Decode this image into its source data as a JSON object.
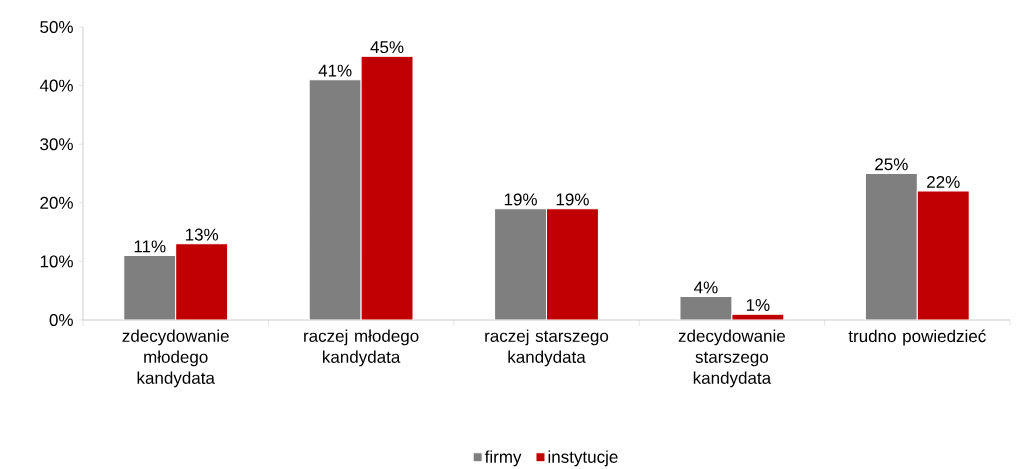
{
  "chart_data": {
    "type": "bar",
    "categories": [
      "zdecydowanie młodego kandydata",
      "raczej młodego kandydata",
      "raczej starszego kandydata",
      "zdecydowanie starszego kandydata",
      "trudno powiedzieć"
    ],
    "series": [
      {
        "name": "firmy",
        "color": "#7f7f7f",
        "values": [
          11,
          41,
          19,
          4,
          25
        ],
        "value_labels": [
          "11%",
          "41%",
          "19%",
          "4%",
          "25%"
        ]
      },
      {
        "name": "instytucje",
        "color": "#c00000",
        "values": [
          13,
          45,
          19,
          1,
          22
        ],
        "value_labels": [
          "13%",
          "45%",
          "19%",
          "1%",
          "22%"
        ]
      }
    ],
    "ylim": [
      0,
      50
    ],
    "yticks": [
      {
        "value": 0,
        "label": "0%"
      },
      {
        "value": 10,
        "label": "10%"
      },
      {
        "value": 20,
        "label": "20%"
      },
      {
        "value": 30,
        "label": "30%"
      },
      {
        "value": 40,
        "label": "40%"
      },
      {
        "value": 50,
        "label": "50%"
      }
    ],
    "grid": false,
    "legend": "bottom"
  }
}
